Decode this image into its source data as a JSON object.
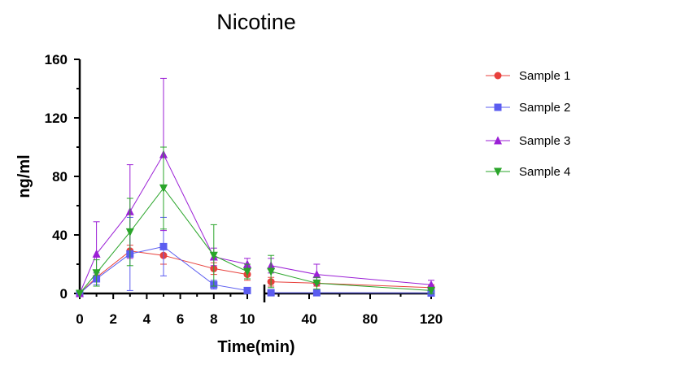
{
  "chart_data": {
    "type": "line",
    "title": "Nicotine",
    "xlabel": "Time(min)",
    "ylabel": "ng/ml",
    "ylim": [
      0,
      160
    ],
    "y_ticks": [
      0,
      40,
      80,
      120,
      160
    ],
    "x_segments": [
      {
        "xlim": [
          0,
          10
        ],
        "ticks": [
          0,
          2,
          4,
          6,
          8,
          10
        ]
      },
      {
        "xlim": [
          10,
          120
        ],
        "ticks": [
          40,
          80,
          120
        ]
      }
    ],
    "x_tick_labels": [
      "0",
      "2",
      "4",
      "6",
      "8",
      "10",
      "40",
      "80",
      "120"
    ],
    "y_tick_labels": [
      "0",
      "40",
      "80",
      "120",
      "160"
    ],
    "legend_position": "right",
    "grid": false,
    "x": [
      0,
      1,
      3,
      5,
      8,
      10,
      15,
      45,
      120
    ],
    "series": [
      {
        "name": "Sample 1",
        "color": "#e8403c",
        "marker": "circle",
        "values": [
          0,
          11,
          29,
          26,
          17,
          13,
          8,
          7,
          4
        ],
        "errors": [
          0,
          3,
          4,
          6,
          4,
          4,
          3,
          2,
          2
        ]
      },
      {
        "name": "Sample 2",
        "color": "#5b5cf0",
        "marker": "square",
        "values": [
          0,
          10,
          27,
          32,
          6,
          2,
          0.5,
          0.5,
          0.3
        ],
        "errors": [
          0,
          4,
          25,
          20,
          3,
          1,
          0.3,
          0.3,
          0.2
        ]
      },
      {
        "name": "Sample 3",
        "color": "#9b1fd6",
        "marker": "triangle-up",
        "values": [
          0,
          27,
          56,
          95,
          25,
          20,
          19,
          13,
          6
        ],
        "errors": [
          0,
          22,
          32,
          52,
          6,
          4,
          5,
          7,
          3
        ]
      },
      {
        "name": "Sample 4",
        "color": "#2aa52a",
        "marker": "triangle-down",
        "values": [
          0,
          14,
          42,
          72,
          26,
          15,
          15,
          7,
          2
        ],
        "errors": [
          0,
          9,
          23,
          28,
          21,
          5,
          11,
          4,
          2
        ]
      }
    ]
  }
}
